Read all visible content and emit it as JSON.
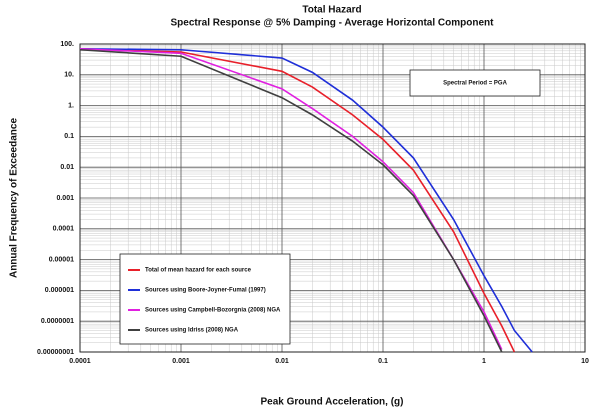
{
  "chart_data": {
    "type": "line",
    "title": "Total Hazard",
    "subtitle": "Spectral Response @ 5% Damping - Average Horizontal Component",
    "x_label": "Peak Ground Acceleration, (g)",
    "y_label": "Annual Frequency of Exceedance",
    "annotation": "Spectral Period = PGA",
    "x": [
      0.0001,
      0.001,
      0.01,
      0.02,
      0.05,
      0.1,
      0.2,
      0.5,
      1,
      1.5,
      2,
      3
    ],
    "series": [
      {
        "name": "Total of mean hazard for each source",
        "color": "#e8202a",
        "values": [
          70,
          55,
          13,
          4,
          0.5,
          0.08,
          0.008,
          8e-05,
          8e-07,
          7e-08,
          1e-08,
          null
        ]
      },
      {
        "name": "Sources using Boore-Joyner-Fumal (1997)",
        "color": "#1f2fd8",
        "values": [
          70,
          65,
          35,
          12,
          1.5,
          0.2,
          0.02,
          0.0002,
          3e-06,
          3e-07,
          5e-08,
          1e-08
        ]
      },
      {
        "name": "Sources using Campbell-Bozorgnia (2008) NGA",
        "color": "#e020e0",
        "values": [
          70,
          50,
          3.5,
          0.8,
          0.1,
          0.015,
          0.0015,
          1e-05,
          2e-07,
          1.2e-08,
          null,
          null
        ]
      },
      {
        "name": "Sources using Idriss (2008) NGA",
        "color": "#404040",
        "values": [
          65,
          40,
          1.8,
          0.5,
          0.07,
          0.012,
          0.0012,
          1e-05,
          1.5e-07,
          1e-08,
          null,
          null
        ]
      }
    ],
    "xlim": [
      0.0001,
      10
    ],
    "xticks": [
      0.0001,
      0.001,
      0.01,
      0.1,
      1,
      10
    ],
    "ylim": [
      1e-08,
      100
    ],
    "yticks": [
      {
        "value": 100,
        "label": "100."
      },
      {
        "value": 10,
        "label": "10."
      },
      {
        "value": 1,
        "label": "1."
      },
      0.1,
      0.01,
      0.001,
      0.0001,
      1e-05,
      1e-06,
      {
        "value": 1e-07,
        "label": "0.0000001"
      },
      {
        "value": 1e-08,
        "label": "0.00000001"
      }
    ],
    "x_log": true,
    "y_log": true,
    "grid": true,
    "legend": "lower left"
  }
}
